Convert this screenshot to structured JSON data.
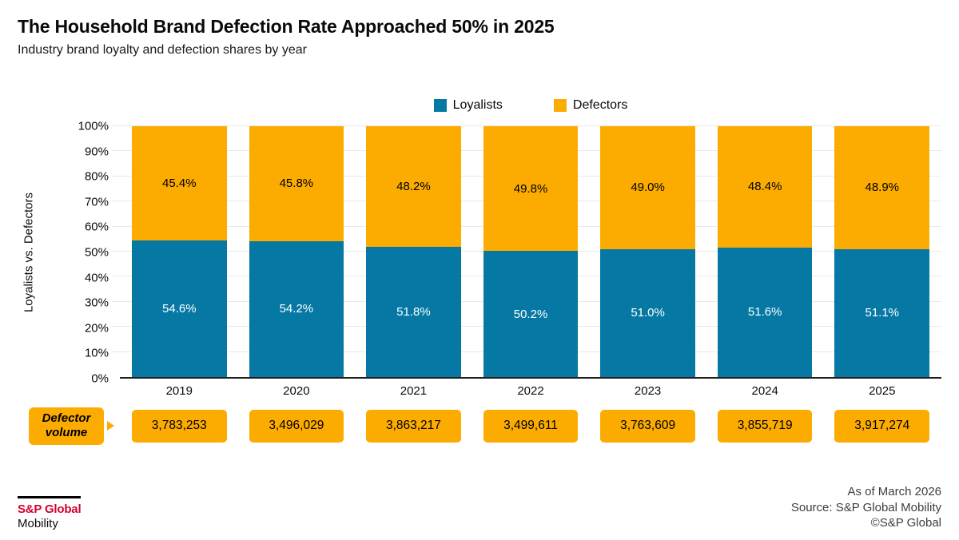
{
  "header": {
    "title": "The Household Brand Defection Rate Approached 50% in 2025",
    "subtitle": "Industry brand loyalty and defection shares by year"
  },
  "colors": {
    "loyalists": "#0678A4",
    "defectors": "#FCAC00",
    "axis_line": "#1f1f1f",
    "gridline": "#e9e9e9",
    "brand_red": "#D6002F"
  },
  "chart_data": {
    "type": "bar",
    "stacked": true,
    "title": "The Household Brand Defection Rate Approached 50% in 2025",
    "subtitle": "Industry brand loyalty and defection shares by year",
    "categories": [
      "2019",
      "2020",
      "2021",
      "2022",
      "2023",
      "2024",
      "2025"
    ],
    "series": [
      {
        "name": "Loyalists",
        "values": [
          54.6,
          54.2,
          51.8,
          50.2,
          51.0,
          51.6,
          51.1
        ],
        "color": "#0678A4",
        "label_color": "#ffffff"
      },
      {
        "name": "Defectors",
        "values": [
          45.4,
          45.8,
          48.2,
          49.8,
          49.0,
          48.4,
          48.9
        ],
        "color": "#FCAC00",
        "label_color": "#000000"
      }
    ],
    "ylabel": "Loyalists vs. Defectors",
    "xlabel": "",
    "ylim": [
      0,
      100
    ],
    "y_tick_step": 10,
    "y_tick_suffix": "%",
    "grid": true,
    "legend_position": "top",
    "value_label_suffix": "%"
  },
  "legend": {
    "loyalists_label": "Loyalists",
    "defectors_label": "Defectors"
  },
  "volume_row": {
    "label": "Defector volume",
    "values": [
      "3,783,253",
      "3,496,029",
      "3,863,217",
      "3,499,611",
      "3,763,609",
      "3,855,719",
      "3,917,274"
    ]
  },
  "footer": {
    "logo_line1": "S&P Global",
    "logo_line2": "Mobility",
    "as_of": "As of March 2026",
    "source": "Source: S&P Global Mobility",
    "copyright": "©S&P Global"
  }
}
